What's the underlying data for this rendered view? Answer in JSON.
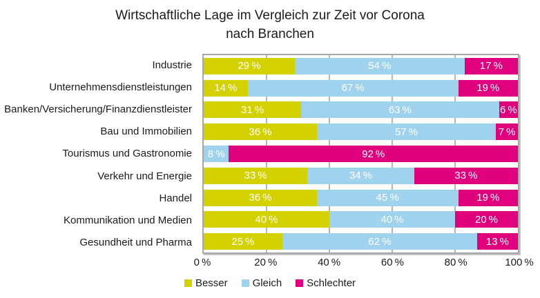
{
  "title": {
    "line1": "Wirtschaftliche Lage im Vergleich zur Zeit vor Corona",
    "line2": "nach Branchen"
  },
  "chart_data": {
    "type": "bar",
    "orientation": "horizontal",
    "stacked": true,
    "title": "Wirtschaftliche Lage im Vergleich zur Zeit vor Corona nach Branchen",
    "categories": [
      "Industrie",
      "Unternehmensdienstleistungen",
      "Banken/Versicherung/Finanzdienstleister",
      "Bau und Immobilien",
      "Tourismus und Gastronomie",
      "Verkehr und Energie",
      "Handel",
      "Kommunikation und Medien",
      "Gesundheit und Pharma"
    ],
    "series": [
      {
        "name": "Besser",
        "color": "#d3d100",
        "values": [
          29,
          14,
          31,
          36,
          0,
          33,
          36,
          40,
          25
        ]
      },
      {
        "name": "Gleich",
        "color": "#9fd2ed",
        "values": [
          54,
          67,
          63,
          57,
          8,
          34,
          45,
          40,
          62
        ]
      },
      {
        "name": "Schlechter",
        "color": "#e0007d",
        "values": [
          17,
          19,
          6,
          7,
          92,
          33,
          19,
          20,
          13
        ]
      }
    ],
    "xlim": [
      0,
      100
    ],
    "x_ticks": [
      "0 %",
      "20 %",
      "40 %",
      "60 %",
      "80 %",
      "100 %"
    ],
    "x_tick_percents": [
      0,
      20,
      40,
      60,
      80,
      100
    ],
    "gridline_percents": [
      20,
      40,
      60,
      80
    ],
    "value_suffix": " %",
    "grid": true,
    "legend_position": "bottom",
    "legend": [
      "Besser",
      "Gleich",
      "Schlechter"
    ]
  },
  "colors": {
    "besser": "#d3d100",
    "gleich": "#9fd2ed",
    "schlechter": "#e0007d",
    "gridline": "#b5b5b5",
    "plot_border": "#a6a6a6",
    "bar_label_text": "#ffffff",
    "text": "#1a1a1a"
  }
}
